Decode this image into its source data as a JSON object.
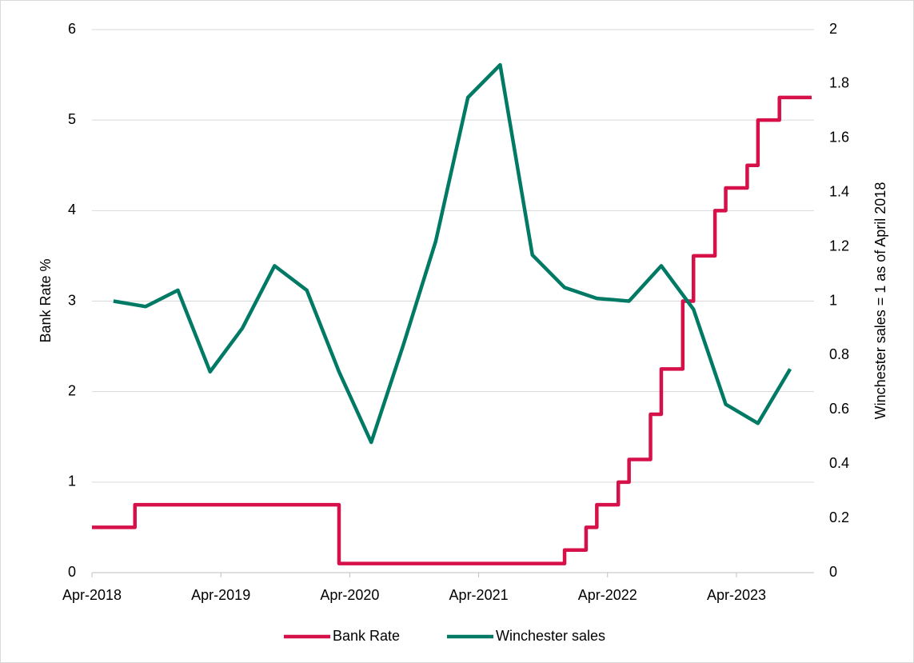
{
  "chart_data": {
    "type": "line",
    "y_label": "Bank Rate %",
    "y2_label": "Winchester sales = 1 as of April 2018",
    "xlim": [
      "2018-04",
      "2023-11"
    ],
    "xticks": [
      {
        "value": "2018-04",
        "label": "Apr-2018"
      },
      {
        "value": "2019-04",
        "label": "Apr-2019"
      },
      {
        "value": "2020-04",
        "label": "Apr-2020"
      },
      {
        "value": "2021-04",
        "label": "Apr-2021"
      },
      {
        "value": "2022-04",
        "label": "Apr-2022"
      },
      {
        "value": "2023-04",
        "label": "Apr-2023"
      }
    ],
    "ylim": [
      0,
      6
    ],
    "yticks": [
      0,
      1,
      2,
      3,
      4,
      5,
      6
    ],
    "y2lim": [
      0,
      2
    ],
    "y2ticks": [
      0,
      0.2,
      0.4,
      0.6,
      0.8,
      1,
      1.2,
      1.4,
      1.6,
      1.8,
      2
    ],
    "grid": true,
    "legend": "bottom",
    "series": [
      {
        "name": "Bank Rate",
        "color": "#d6114a",
        "x": [
          "2018-04",
          "2018-08",
          "2018-08",
          "2020-03",
          "2020-03",
          "2020-03",
          "2021-12",
          "2021-12",
          "2022-02",
          "2022-02",
          "2022-03",
          "2022-03",
          "2022-05",
          "2022-05",
          "2022-06",
          "2022-06",
          "2022-08",
          "2022-08",
          "2022-09",
          "2022-09",
          "2022-11",
          "2022-11",
          "2022-12",
          "2022-12",
          "2023-02",
          "2023-02",
          "2023-03",
          "2023-03",
          "2023-05",
          "2023-05",
          "2023-06",
          "2023-06",
          "2023-08",
          "2023-08",
          "2023-11"
        ],
        "values": [
          0.5,
          0.5,
          0.75,
          0.75,
          0.25,
          0.1,
          0.1,
          0.25,
          0.25,
          0.5,
          0.5,
          0.75,
          0.75,
          1,
          1,
          1.25,
          1.25,
          1.75,
          1.75,
          2.25,
          2.25,
          3,
          3,
          3.5,
          3.5,
          4,
          4,
          4.25,
          4.25,
          4.5,
          4.5,
          5,
          5,
          5.25,
          5.25
        ]
      },
      {
        "name": "Winchester sales",
        "color": "#007a64",
        "axis": "y2",
        "x": [
          "2018-06",
          "2018-09",
          "2018-12",
          "2019-03",
          "2019-06",
          "2019-09",
          "2019-12",
          "2020-03",
          "2020-06",
          "2020-09",
          "2020-12",
          "2021-03",
          "2021-06",
          "2021-09",
          "2021-12",
          "2022-03",
          "2022-06",
          "2022-09",
          "2022-12",
          "2023-03",
          "2023-06",
          "2023-09"
        ],
        "values": [
          1.0,
          0.98,
          1.04,
          0.74,
          0.9,
          1.13,
          1.04,
          0.74,
          0.48,
          0.84,
          1.22,
          1.75,
          1.87,
          1.17,
          1.05,
          1.01,
          1.0,
          1.13,
          0.97,
          0.62,
          0.55,
          0.75
        ]
      }
    ]
  }
}
